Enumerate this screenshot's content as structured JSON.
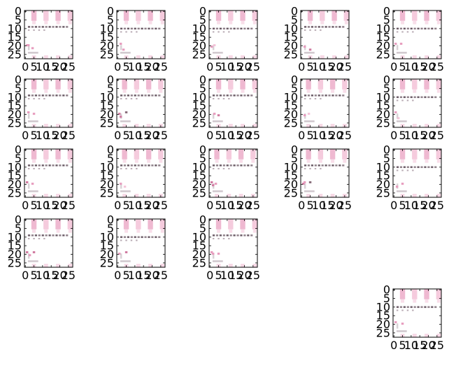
{
  "chart_data": {
    "type": "heatmap",
    "grid": false,
    "colormap": [
      "#ffffff",
      "#fbe9f1",
      "#f3c3d8",
      "#e79bbd",
      "#d07aa0",
      "#8a6f7c",
      "#3a3a3a"
    ],
    "panels": [
      {
        "ytick_labels": [
          "0",
          "5",
          "10",
          "15",
          "20",
          "25"
        ],
        "xtick_labels": [
          "0",
          "5",
          "10",
          "15",
          "20",
          "25"
        ],
        "xlim": [
          0,
          28
        ],
        "ylim": [
          28,
          0
        ],
        "pattern": "A",
        "cells": [
          [
            1,
            3,
            0.55
          ],
          [
            2,
            3,
            0.55
          ],
          [
            5,
            5,
            0.45
          ]
        ]
      },
      {
        "ytick_labels": [
          "0",
          "5",
          "10",
          "15",
          "20",
          "25"
        ],
        "xtick_labels": [
          "0",
          "5",
          "10",
          "15",
          "20",
          "25"
        ],
        "xlim": [
          0,
          28
        ],
        "ylim": [
          28,
          0
        ],
        "pattern": "B",
        "cells": [
          [
            2,
            2,
            0.5
          ],
          [
            4,
            6,
            0.45
          ]
        ]
      },
      {
        "ytick_labels": [
          "0",
          "5",
          "10",
          "15",
          "20",
          "25"
        ],
        "xtick_labels": [
          "0",
          "5",
          "10",
          "15",
          "20",
          "25"
        ],
        "xlim": [
          0,
          28
        ],
        "ylim": [
          28,
          0
        ],
        "pattern": "B",
        "cells": [
          [
            1,
            4,
            0.5
          ],
          [
            3,
            3,
            0.4
          ]
        ]
      },
      {
        "ytick_labels": [
          "0",
          "5",
          "10",
          "15",
          "20",
          "25"
        ],
        "xtick_labels": [
          "0",
          "5",
          "10",
          "15",
          "20",
          "25"
        ],
        "xlim": [
          0,
          28
        ],
        "ylim": [
          28,
          0
        ],
        "pattern": "A",
        "cells": [
          [
            2,
            4,
            0.5
          ],
          [
            6,
            6,
            0.6
          ]
        ]
      },
      {
        "ytick_labels": [
          "0",
          "5",
          "10",
          "15",
          "20",
          "25"
        ],
        "xtick_labels": [
          "0",
          "5",
          "10",
          "15",
          "20",
          "25"
        ],
        "xlim": [
          0,
          28
        ],
        "ylim": [
          28,
          0
        ],
        "pattern": "B",
        "cells": [
          [
            1,
            2,
            0.5
          ],
          [
            5,
            2,
            0.55
          ]
        ]
      },
      {
        "ytick_labels": [
          "0",
          "5",
          "10",
          "15",
          "20",
          "25"
        ],
        "xtick_labels": [
          "0",
          "5",
          "10",
          "15",
          "20",
          "25"
        ],
        "xlim": [
          0,
          28
        ],
        "ylim": [
          28,
          0
        ],
        "pattern": "A",
        "cells": [
          [
            2,
            2,
            0.5
          ],
          [
            6,
            3,
            0.55
          ]
        ]
      },
      {
        "ytick_labels": [
          "0",
          "5",
          "10",
          "15",
          "20",
          "25"
        ],
        "xtick_labels": [
          "0",
          "5",
          "10",
          "15",
          "20",
          "25"
        ],
        "xlim": [
          0,
          28
        ],
        "ylim": [
          28,
          0
        ],
        "pattern": "C",
        "cells": [
          [
            1,
            3,
            0.7
          ],
          [
            2,
            5,
            0.6
          ],
          [
            6,
            2,
            0.8
          ]
        ]
      },
      {
        "ytick_labels": [
          "0",
          "5",
          "10",
          "15",
          "20",
          "25"
        ],
        "xtick_labels": [
          "0",
          "5",
          "10",
          "15",
          "20",
          "25"
        ],
        "xlim": [
          0,
          28
        ],
        "ylim": [
          28,
          0
        ],
        "pattern": "A",
        "cells": [
          [
            3,
            3,
            0.5
          ],
          [
            6,
            4,
            0.65
          ]
        ]
      },
      {
        "ytick_labels": [
          "0",
          "5",
          "10",
          "15",
          "20",
          "25"
        ],
        "xtick_labels": [
          "0",
          "5",
          "10",
          "15",
          "20",
          "25"
        ],
        "xlim": [
          0,
          28
        ],
        "ylim": [
          28,
          0
        ],
        "pattern": "C",
        "cells": [
          [
            2,
            4,
            0.45
          ],
          [
            5,
            3,
            0.4
          ]
        ]
      },
      {
        "ytick_labels": [
          "0",
          "5",
          "10",
          "15",
          "20",
          "25"
        ],
        "xtick_labels": [
          "0",
          "5",
          "10",
          "15",
          "20",
          "25"
        ],
        "xlim": [
          0,
          28
        ],
        "ylim": [
          28,
          0
        ],
        "pattern": "B",
        "cells": [
          [
            1,
            2,
            0.5
          ],
          [
            3,
            6,
            0.4
          ]
        ]
      },
      {
        "ytick_labels": [
          "0",
          "5",
          "10",
          "15",
          "20",
          "25"
        ],
        "xtick_labels": [
          "0",
          "5",
          "10",
          "15",
          "20",
          "25"
        ],
        "xlim": [
          0,
          28
        ],
        "ylim": [
          28,
          0
        ],
        "pattern": "A",
        "cells": [
          [
            1,
            2,
            0.7
          ],
          [
            5,
            3,
            0.45
          ]
        ]
      },
      {
        "ytick_labels": [
          "0",
          "5",
          "10",
          "15",
          "20",
          "25"
        ],
        "xtick_labels": [
          "0",
          "5",
          "10",
          "15",
          "20",
          "25"
        ],
        "xlim": [
          0,
          28
        ],
        "ylim": [
          28,
          0
        ],
        "pattern": "C",
        "cells": [
          [
            2,
            3,
            0.45
          ],
          [
            5,
            5,
            0.4
          ]
        ]
      },
      {
        "ytick_labels": [
          "0",
          "5",
          "10",
          "15",
          "20",
          "25"
        ],
        "xtick_labels": [
          "0",
          "5",
          "10",
          "15",
          "20",
          "25"
        ],
        "xlim": [
          0,
          28
        ],
        "ylim": [
          28,
          0
        ],
        "pattern": "C",
        "cells": [
          [
            1,
            2,
            0.7
          ],
          [
            2,
            4,
            0.6
          ],
          [
            4,
            3,
            0.5
          ]
        ]
      },
      {
        "ytick_labels": [
          "0",
          "5",
          "10",
          "15",
          "20",
          "25"
        ],
        "xtick_labels": [
          "0",
          "5",
          "10",
          "15",
          "20",
          "25"
        ],
        "xlim": [
          0,
          28
        ],
        "ylim": [
          28,
          0
        ],
        "pattern": "C",
        "cells": [
          [
            1,
            3,
            0.6
          ],
          [
            2,
            2,
            0.55
          ],
          [
            6,
            2,
            0.75
          ]
        ]
      },
      {
        "ytick_labels": [
          "0",
          "5",
          "10",
          "15",
          "20",
          "25"
        ],
        "xtick_labels": [
          "0",
          "5",
          "10",
          "15",
          "20",
          "25"
        ],
        "xlim": [
          0,
          28
        ],
        "ylim": [
          28,
          0
        ],
        "pattern": "B",
        "cells": [
          [
            2,
            5,
            0.5
          ],
          [
            6,
            3,
            0.45
          ]
        ]
      },
      {
        "ytick_labels": [
          "0",
          "5",
          "10",
          "15",
          "20",
          "25"
        ],
        "xtick_labels": [
          "0",
          "5",
          "10",
          "15",
          "20",
          "25"
        ],
        "xlim": [
          0,
          28
        ],
        "ylim": [
          28,
          0
        ],
        "pattern": "A",
        "cells": [
          [
            1,
            2,
            0.6
          ],
          [
            3,
            4,
            0.45
          ],
          [
            6,
            2,
            0.7
          ]
        ]
      },
      {
        "ytick_labels": [
          "0",
          "5",
          "10",
          "15",
          "20",
          "25"
        ],
        "xtick_labels": [
          "0",
          "5",
          "10",
          "15",
          "20",
          "25"
        ],
        "xlim": [
          0,
          28
        ],
        "ylim": [
          28,
          0
        ],
        "pattern": "B",
        "cells": [
          [
            1,
            3,
            0.55
          ],
          [
            6,
            2,
            0.65
          ]
        ]
      },
      {
        "ytick_labels": [
          "0",
          "5",
          "10",
          "15",
          "20",
          "25"
        ],
        "xtick_labels": [
          "0",
          "5",
          "10",
          "15",
          "20",
          "25"
        ],
        "xlim": [
          0,
          28
        ],
        "ylim": [
          28,
          0
        ],
        "pattern": "A",
        "cells": [
          [
            1,
            2,
            0.5
          ],
          [
            2,
            3,
            0.45
          ],
          [
            6,
            3,
            0.5
          ]
        ]
      },
      {
        "ytick_labels": [
          "0",
          "5",
          "10",
          "15",
          "20",
          "25"
        ],
        "xtick_labels": [
          "0",
          "5",
          "10",
          "15",
          "20",
          "25"
        ],
        "xlim": [
          0,
          28
        ],
        "ylim": [
          28,
          0
        ],
        "pattern": "B",
        "cells": [
          [
            1,
            2,
            0.5
          ],
          [
            6,
            3,
            0.45
          ]
        ]
      }
    ]
  }
}
